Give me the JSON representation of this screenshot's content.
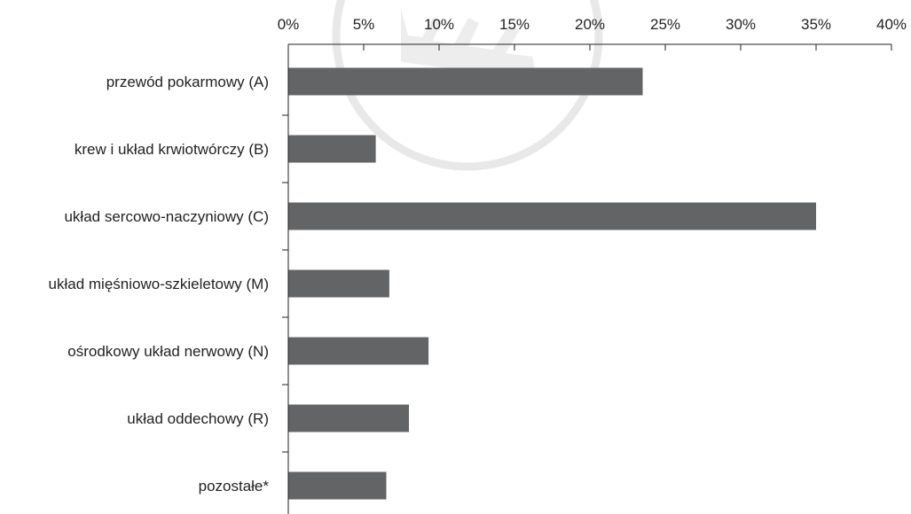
{
  "chart_data": {
    "type": "bar",
    "orientation": "horizontal",
    "categories": [
      "przewód pokarmowy (A)",
      "krew i układ krwiotwórczy (B)",
      "układ sercowo-naczyniowy (C)",
      "układ mięśniowo-szkieletowy (M)",
      "ośrodkowy układ nerwowy (N)",
      "układ oddechowy (R)",
      "pozostałe*"
    ],
    "values": [
      23.5,
      5.8,
      35.0,
      6.7,
      9.3,
      8.0,
      6.5
    ],
    "xlim": [
      0,
      40
    ],
    "x_ticks": [
      0,
      5,
      10,
      15,
      20,
      25,
      30,
      35,
      40
    ],
    "x_tick_labels": [
      "0%",
      "5%",
      "10%",
      "15%",
      "20%",
      "25%",
      "30%",
      "35%",
      "40%"
    ],
    "x_axis_position": "top",
    "grid": false,
    "legend": "none",
    "bar_color": "#636466",
    "axis_color": "#231f20",
    "title": "",
    "xlabel": "",
    "ylabel": ""
  }
}
